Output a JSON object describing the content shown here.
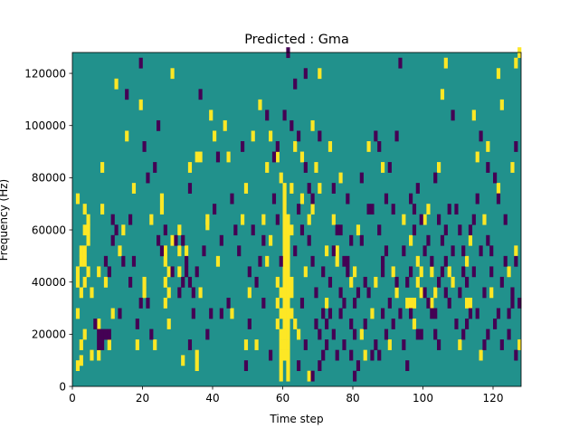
{
  "chart_data": {
    "type": "heatmap",
    "title": "Predicted : Gma",
    "xlabel": "Time step",
    "ylabel": "Frequency (Hz)",
    "xlim": [
      0,
      128
    ],
    "ylim": [
      0,
      128000
    ],
    "xticks": [
      0,
      20,
      40,
      60,
      80,
      100,
      120
    ],
    "xtick_labels": [
      "0",
      "20",
      "40",
      "60",
      "80",
      "100",
      "120"
    ],
    "yticks": [
      0,
      20000,
      40000,
      60000,
      80000,
      100000,
      120000
    ],
    "ytick_labels": [
      "0",
      "20000",
      "40000",
      "60000",
      "80000",
      "100000",
      "120000"
    ],
    "grid": false,
    "colors": {
      "background_level": "#21918c",
      "high_level": "#fde725",
      "low_level": "#440154"
    },
    "value_levels": {
      "low": 0,
      "background": 1,
      "high": 2
    },
    "cell_height_hz": 4000,
    "high_cells": [
      [
        1,
        6000
      ],
      [
        2,
        8000
      ],
      [
        2,
        14000
      ],
      [
        3,
        18000
      ],
      [
        1,
        26000
      ],
      [
        2,
        34000
      ],
      [
        1,
        38000
      ],
      [
        3,
        38000
      ],
      [
        1,
        42000
      ],
      [
        2,
        46000
      ],
      [
        3,
        46000
      ],
      [
        4,
        42000
      ],
      [
        2,
        50000
      ],
      [
        3,
        50000
      ],
      [
        4,
        54000
      ],
      [
        3,
        58000
      ],
      [
        4,
        58000
      ],
      [
        4,
        62000
      ],
      [
        3,
        66000
      ],
      [
        1,
        70000
      ],
      [
        5,
        10000
      ],
      [
        5,
        34000
      ],
      [
        8,
        66000
      ],
      [
        8,
        82000
      ],
      [
        9,
        38000
      ],
      [
        11,
        26000
      ],
      [
        7,
        42000
      ],
      [
        13,
        50000
      ],
      [
        18,
        14000
      ],
      [
        17,
        74000
      ],
      [
        20,
        34000
      ],
      [
        22,
        62000
      ],
      [
        25,
        66000
      ],
      [
        26,
        30000
      ],
      [
        26,
        38000
      ],
      [
        26,
        46000
      ],
      [
        26,
        50000
      ],
      [
        27,
        22000
      ],
      [
        27,
        34000
      ],
      [
        27,
        42000
      ],
      [
        28,
        54000
      ],
      [
        30,
        58000
      ],
      [
        30,
        42000
      ],
      [
        31,
        8000
      ],
      [
        32,
        50000
      ],
      [
        35,
        10000
      ],
      [
        35,
        86000
      ],
      [
        36,
        86000
      ],
      [
        36,
        34000
      ],
      [
        38,
        60000
      ],
      [
        39,
        102000
      ],
      [
        41,
        46000
      ],
      [
        43,
        98000
      ],
      [
        49,
        14000
      ],
      [
        49,
        74000
      ],
      [
        50,
        34000
      ],
      [
        51,
        94000
      ],
      [
        52,
        14000
      ],
      [
        54,
        62000
      ],
      [
        55,
        82000
      ],
      [
        55,
        46000
      ],
      [
        56,
        94000
      ],
      [
        58,
        86000
      ],
      [
        58,
        30000
      ],
      [
        58,
        22000
      ],
      [
        58,
        38000
      ],
      [
        59,
        34000
      ],
      [
        59,
        26000
      ],
      [
        59,
        18000
      ],
      [
        59,
        14000
      ],
      [
        59,
        10000
      ],
      [
        59,
        6000
      ],
      [
        59,
        2000
      ],
      [
        60,
        74000
      ],
      [
        60,
        70000
      ],
      [
        60,
        66000
      ],
      [
        60,
        62000
      ],
      [
        60,
        58000
      ],
      [
        60,
        54000
      ],
      [
        60,
        50000
      ],
      [
        60,
        46000
      ],
      [
        60,
        42000
      ],
      [
        60,
        38000
      ],
      [
        60,
        34000
      ],
      [
        60,
        30000
      ],
      [
        60,
        26000
      ],
      [
        60,
        22000
      ],
      [
        60,
        18000
      ],
      [
        60,
        14000
      ],
      [
        60,
        10000
      ],
      [
        61,
        62000
      ],
      [
        61,
        58000
      ],
      [
        61,
        54000
      ],
      [
        61,
        50000
      ],
      [
        61,
        46000
      ],
      [
        61,
        42000
      ],
      [
        61,
        38000
      ],
      [
        61,
        34000
      ],
      [
        61,
        30000
      ],
      [
        61,
        26000
      ],
      [
        61,
        22000
      ],
      [
        61,
        18000
      ],
      [
        61,
        14000
      ],
      [
        61,
        10000
      ],
      [
        61,
        6000
      ],
      [
        61,
        2000
      ],
      [
        62,
        38000
      ],
      [
        62,
        34000
      ],
      [
        62,
        26000
      ],
      [
        62,
        58000
      ],
      [
        63,
        22000
      ],
      [
        59,
        78000
      ],
      [
        63,
        90000
      ],
      [
        65,
        70000
      ],
      [
        65,
        86000
      ],
      [
        67,
        2000
      ],
      [
        68,
        66000
      ],
      [
        69,
        82000
      ],
      [
        68,
        98000
      ],
      [
        70,
        118000
      ],
      [
        72,
        30000
      ],
      [
        73,
        90000
      ],
      [
        74,
        62000
      ],
      [
        75,
        46000
      ],
      [
        75,
        50000
      ],
      [
        80,
        42000
      ],
      [
        82,
        18000
      ],
      [
        83,
        10000
      ],
      [
        84,
        90000
      ],
      [
        86,
        38000
      ],
      [
        91,
        42000
      ],
      [
        92,
        34000
      ],
      [
        94,
        62000
      ],
      [
        96,
        54000
      ],
      [
        96,
        30000
      ],
      [
        97,
        30000
      ],
      [
        98,
        38000
      ],
      [
        99,
        34000
      ],
      [
        99,
        42000
      ],
      [
        100,
        62000
      ],
      [
        101,
        66000
      ],
      [
        102,
        42000
      ],
      [
        103,
        34000
      ],
      [
        102,
        30000
      ],
      [
        105,
        110000
      ],
      [
        107,
        42000
      ],
      [
        112,
        46000
      ],
      [
        112,
        30000
      ],
      [
        113,
        30000
      ],
      [
        113,
        54000
      ],
      [
        114,
        102000
      ],
      [
        116,
        10000
      ],
      [
        118,
        90000
      ],
      [
        121,
        74000
      ],
      [
        121,
        118000
      ],
      [
        126,
        50000
      ],
      [
        127,
        14000
      ],
      [
        126,
        122000
      ],
      [
        7,
        10000
      ],
      [
        7,
        22000
      ],
      [
        10,
        14000
      ],
      [
        12,
        114000
      ],
      [
        15,
        94000
      ],
      [
        14,
        58000
      ],
      [
        19,
        106000
      ],
      [
        20,
        38000
      ],
      [
        23,
        14000
      ],
      [
        25,
        70000
      ],
      [
        28,
        118000
      ],
      [
        30,
        50000
      ],
      [
        33,
        82000
      ],
      [
        35,
        6000
      ],
      [
        38,
        62000
      ],
      [
        40,
        94000
      ],
      [
        44,
        86000
      ],
      [
        45,
        26000
      ],
      [
        48,
        62000
      ],
      [
        53,
        106000
      ],
      [
        56,
        54000
      ],
      [
        60,
        10000
      ],
      [
        62,
        74000
      ],
      [
        64,
        18000
      ],
      [
        66,
        42000
      ],
      [
        67,
        62000
      ],
      [
        70,
        74000
      ],
      [
        72,
        50000
      ],
      [
        76,
        78000
      ],
      [
        79,
        38000
      ],
      [
        81,
        58000
      ],
      [
        85,
        26000
      ],
      [
        88,
        82000
      ],
      [
        90,
        14000
      ],
      [
        95,
        30000
      ],
      [
        97,
        22000
      ],
      [
        98,
        46000
      ],
      [
        104,
        82000
      ],
      [
        106,
        122000
      ],
      [
        108,
        38000
      ],
      [
        110,
        14000
      ],
      [
        115,
        86000
      ],
      [
        117,
        62000
      ],
      [
        119,
        34000
      ],
      [
        122,
        106000
      ],
      [
        124,
        42000
      ],
      [
        125,
        82000
      ],
      [
        127,
        126000
      ]
    ],
    "low_cells": [
      [
        6,
        22000
      ],
      [
        10,
        42000
      ],
      [
        12,
        58000
      ],
      [
        14,
        46000
      ],
      [
        16,
        38000
      ],
      [
        18,
        22000
      ],
      [
        19,
        30000
      ],
      [
        22,
        18000
      ],
      [
        25,
        50000
      ],
      [
        28,
        42000
      ],
      [
        30,
        34000
      ],
      [
        32,
        46000
      ],
      [
        33,
        14000
      ],
      [
        34,
        26000
      ],
      [
        35,
        42000
      ],
      [
        38,
        18000
      ],
      [
        40,
        66000
      ],
      [
        42,
        54000
      ],
      [
        44,
        30000
      ],
      [
        47,
        50000
      ],
      [
        49,
        6000
      ],
      [
        50,
        22000
      ],
      [
        52,
        38000
      ],
      [
        53,
        46000
      ],
      [
        54,
        54000
      ],
      [
        56,
        10000
      ],
      [
        57,
        70000
      ],
      [
        58,
        90000
      ],
      [
        60,
        102000
      ],
      [
        62,
        98000
      ],
      [
        64,
        66000
      ],
      [
        65,
        58000
      ],
      [
        66,
        82000
      ],
      [
        67,
        74000
      ],
      [
        68,
        46000
      ],
      [
        69,
        34000
      ],
      [
        70,
        18000
      ],
      [
        71,
        10000
      ],
      [
        72,
        22000
      ],
      [
        73,
        38000
      ],
      [
        74,
        50000
      ],
      [
        75,
        58000
      ],
      [
        76,
        26000
      ],
      [
        77,
        14000
      ],
      [
        78,
        42000
      ],
      [
        79,
        10000
      ],
      [
        80,
        30000
      ],
      [
        81,
        6000
      ],
      [
        82,
        54000
      ],
      [
        83,
        22000
      ],
      [
        84,
        34000
      ],
      [
        85,
        66000
      ],
      [
        86,
        14000
      ],
      [
        87,
        90000
      ],
      [
        88,
        46000
      ],
      [
        89,
        70000
      ],
      [
        90,
        30000
      ],
      [
        91,
        22000
      ],
      [
        92,
        94000
      ],
      [
        94,
        14000
      ],
      [
        96,
        26000
      ],
      [
        97,
        66000
      ],
      [
        98,
        18000
      ],
      [
        99,
        62000
      ],
      [
        100,
        34000
      ],
      [
        101,
        54000
      ],
      [
        102,
        46000
      ],
      [
        103,
        26000
      ],
      [
        104,
        14000
      ],
      [
        105,
        42000
      ],
      [
        106,
        58000
      ],
      [
        107,
        30000
      ],
      [
        108,
        50000
      ],
      [
        109,
        66000
      ],
      [
        110,
        34000
      ],
      [
        111,
        18000
      ],
      [
        113,
        58000
      ],
      [
        114,
        42000
      ],
      [
        115,
        26000
      ],
      [
        116,
        94000
      ],
      [
        117,
        14000
      ],
      [
        118,
        82000
      ],
      [
        119,
        50000
      ],
      [
        120,
        22000
      ],
      [
        121,
        70000
      ],
      [
        122,
        38000
      ],
      [
        123,
        62000
      ],
      [
        124,
        18000
      ],
      [
        125,
        30000
      ],
      [
        126,
        46000
      ],
      [
        7,
        18000
      ],
      [
        8,
        18000
      ],
      [
        9,
        18000
      ],
      [
        10,
        18000
      ],
      [
        11,
        54000
      ],
      [
        11,
        62000
      ],
      [
        15,
        110000
      ],
      [
        19,
        122000
      ],
      [
        20,
        90000
      ],
      [
        21,
        78000
      ],
      [
        23,
        82000
      ],
      [
        24,
        98000
      ],
      [
        26,
        58000
      ],
      [
        31,
        54000
      ],
      [
        33,
        74000
      ],
      [
        36,
        110000
      ],
      [
        39,
        26000
      ],
      [
        41,
        86000
      ],
      [
        45,
        70000
      ],
      [
        48,
        90000
      ],
      [
        51,
        58000
      ],
      [
        55,
        102000
      ],
      [
        57,
        86000
      ],
      [
        61,
        126000
      ],
      [
        63,
        114000
      ],
      [
        64,
        94000
      ],
      [
        66,
        118000
      ],
      [
        68,
        70000
      ],
      [
        70,
        94000
      ],
      [
        71,
        42000
      ],
      [
        73,
        26000
      ],
      [
        74,
        18000
      ],
      [
        75,
        10000
      ],
      [
        76,
        34000
      ],
      [
        77,
        46000
      ],
      [
        78,
        70000
      ],
      [
        79,
        54000
      ],
      [
        80,
        18000
      ],
      [
        82,
        78000
      ],
      [
        83,
        38000
      ],
      [
        84,
        66000
      ],
      [
        86,
        94000
      ],
      [
        87,
        10000
      ],
      [
        88,
        26000
      ],
      [
        89,
        50000
      ],
      [
        90,
        82000
      ],
      [
        93,
        122000
      ],
      [
        95,
        38000
      ],
      [
        96,
        70000
      ],
      [
        98,
        74000
      ],
      [
        100,
        50000
      ],
      [
        102,
        26000
      ],
      [
        103,
        78000
      ],
      [
        104,
        62000
      ],
      [
        106,
        46000
      ],
      [
        108,
        102000
      ],
      [
        110,
        58000
      ],
      [
        111,
        42000
      ],
      [
        112,
        22000
      ],
      [
        115,
        70000
      ],
      [
        117,
        34000
      ],
      [
        118,
        54000
      ],
      [
        120,
        78000
      ],
      [
        122,
        14000
      ],
      [
        124,
        26000
      ],
      [
        126,
        90000
      ],
      [
        127,
        30000
      ],
      [
        7,
        14000
      ],
      [
        8,
        14000
      ],
      [
        9,
        46000
      ],
      [
        13,
        26000
      ],
      [
        16,
        62000
      ],
      [
        17,
        46000
      ],
      [
        21,
        30000
      ],
      [
        24,
        54000
      ],
      [
        29,
        54000
      ],
      [
        31,
        38000
      ],
      [
        32,
        42000
      ],
      [
        33,
        38000
      ],
      [
        34,
        34000
      ],
      [
        37,
        50000
      ],
      [
        42,
        26000
      ],
      [
        46,
        58000
      ],
      [
        50,
        42000
      ],
      [
        54,
        30000
      ],
      [
        58,
        62000
      ],
      [
        59,
        46000
      ],
      [
        63,
        50000
      ],
      [
        64,
        6000
      ],
      [
        65,
        30000
      ],
      [
        66,
        14000
      ],
      [
        67,
        54000
      ],
      [
        68,
        2000
      ],
      [
        69,
        22000
      ],
      [
        70,
        6000
      ],
      [
        71,
        26000
      ],
      [
        72,
        14000
      ],
      [
        74,
        74000
      ],
      [
        76,
        58000
      ],
      [
        77,
        30000
      ],
      [
        78,
        46000
      ],
      [
        79,
        22000
      ],
      [
        80,
        2000
      ],
      [
        81,
        34000
      ],
      [
        85,
        10000
      ],
      [
        87,
        58000
      ],
      [
        88,
        42000
      ],
      [
        89,
        18000
      ],
      [
        91,
        66000
      ],
      [
        92,
        38000
      ],
      [
        93,
        26000
      ],
      [
        94,
        50000
      ],
      [
        95,
        6000
      ],
      [
        96,
        42000
      ],
      [
        97,
        58000
      ],
      [
        99,
        18000
      ],
      [
        101,
        30000
      ],
      [
        103,
        18000
      ],
      [
        104,
        38000
      ],
      [
        105,
        54000
      ],
      [
        106,
        34000
      ],
      [
        107,
        66000
      ],
      [
        109,
        22000
      ],
      [
        111,
        50000
      ],
      [
        112,
        38000
      ],
      [
        113,
        26000
      ],
      [
        114,
        62000
      ],
      [
        116,
        50000
      ],
      [
        118,
        18000
      ],
      [
        119,
        42000
      ],
      [
        121,
        26000
      ],
      [
        123,
        46000
      ],
      [
        125,
        34000
      ],
      [
        126,
        10000
      ]
    ]
  }
}
